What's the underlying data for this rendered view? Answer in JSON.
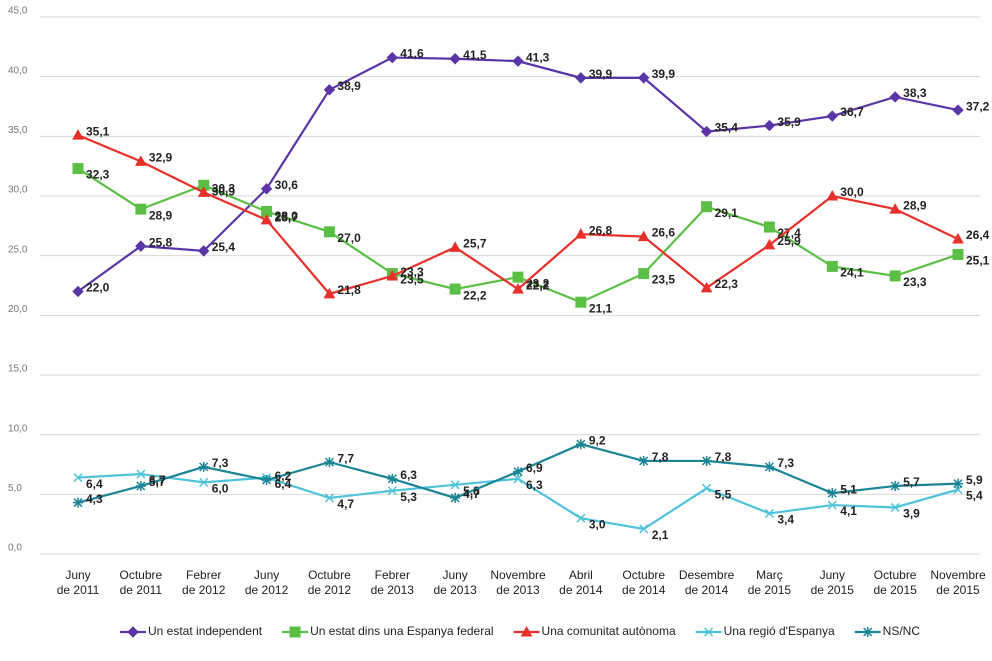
{
  "chart_data": {
    "type": "line",
    "categories": [
      "Juny\nde 2011",
      "Octubre\nde 2011",
      "Febrer\nde 2012",
      "Juny\nde 2012",
      "Octubre\nde 2012",
      "Febrer\nde 2013",
      "Juny\nde 2013",
      "Novembre\nde 2013",
      "Abril\nde 2014",
      "Octubre\nde 2014",
      "Desembre\nde 2014",
      "Març\nde 2015",
      "Juny\nde 2015",
      "Octubre\nde 2015",
      "Novembre\nde 2015"
    ],
    "ylim": [
      0,
      45
    ],
    "yticks": [
      {
        "value": 0,
        "label": "0,0"
      },
      {
        "value": 5,
        "label": "5,0"
      },
      {
        "value": 10,
        "label": "10,0"
      },
      {
        "value": 15,
        "label": "15,0"
      },
      {
        "value": 20,
        "label": "20,0"
      },
      {
        "value": 25,
        "label": "25,0"
      },
      {
        "value": 30,
        "label": "30,0"
      },
      {
        "value": 35,
        "label": "35,0"
      },
      {
        "value": 40,
        "label": "40,0"
      },
      {
        "value": 45,
        "label": "45,0"
      }
    ],
    "grid": true,
    "legend": "bottom",
    "series": [
      {
        "name": "Un estat independent",
        "color": "#5b35a8",
        "marker": "diamond",
        "values": [
          22.0,
          25.8,
          25.4,
          30.6,
          38.9,
          41.6,
          41.5,
          41.3,
          39.9,
          39.9,
          35.4,
          35.9,
          36.7,
          38.3,
          37.2
        ],
        "value_labels": [
          "22,0",
          "25,8",
          "25,4",
          "30,6",
          "38,9",
          "41,6",
          "41,5",
          "41,3",
          "39,9",
          "39,9",
          "35,4",
          "35,9",
          "36,7",
          "38,3",
          "37,2"
        ]
      },
      {
        "name": "Un estat dins una Espanya federal",
        "color": "#5cbf45",
        "marker": "square",
        "values": [
          32.3,
          28.9,
          30.9,
          28.7,
          27.0,
          23.5,
          22.2,
          23.2,
          21.1,
          23.5,
          29.1,
          27.4,
          24.1,
          23.3,
          25.1
        ],
        "value_labels": [
          "32,3",
          "28,9",
          "30,9",
          "28,7",
          "27,0",
          "23,5",
          "22,2",
          "23,2",
          "21,1",
          "23,5",
          "29,1",
          "27,4",
          "24,1",
          "23,3",
          "25,1"
        ]
      },
      {
        "name": "Una comunitat autònoma",
        "color": "#e8302a",
        "marker": "triangle",
        "values": [
          35.1,
          32.9,
          30.3,
          28.0,
          21.8,
          23.3,
          25.7,
          22.2,
          26.8,
          26.6,
          22.3,
          25.9,
          30.0,
          28.9,
          26.4
        ],
        "value_labels": [
          "35,1",
          "32,9",
          "30,3",
          "28,0",
          "21,8",
          "23,3",
          "25,7",
          "22,2",
          "26,8",
          "26,6",
          "22,3",
          "25,9",
          "30,0",
          "28,9",
          "26,4"
        ]
      },
      {
        "name": "Una regió d'Espanya",
        "color": "#4fc3d9",
        "marker": "x",
        "values": [
          6.4,
          6.7,
          6.0,
          6.4,
          4.7,
          5.3,
          5.8,
          6.3,
          3.0,
          2.1,
          5.5,
          3.4,
          4.1,
          3.9,
          5.4
        ],
        "value_labels": [
          "6,4",
          "6,7",
          "6,0",
          "6,4",
          "4,7",
          "5,3",
          "5,8",
          "6,3",
          "3,0",
          "2,1",
          "5,5",
          "3,4",
          "4,1",
          "3,9",
          "5,4"
        ]
      },
      {
        "name": "NS/NC",
        "color": "#1b8595",
        "marker": "star",
        "values": [
          4.3,
          5.7,
          7.3,
          6.2,
          7.7,
          6.3,
          4.7,
          6.9,
          9.2,
          7.8,
          7.8,
          7.3,
          5.1,
          5.7,
          5.9
        ],
        "value_labels": [
          "4,3",
          "5,7",
          "7,3",
          "6,2",
          "7,7",
          "6,3",
          "4,7",
          "6,9",
          "9,2",
          "7,8",
          "7,8",
          "7,3",
          "5,1",
          "5,7",
          "5,9"
        ]
      }
    ]
  }
}
